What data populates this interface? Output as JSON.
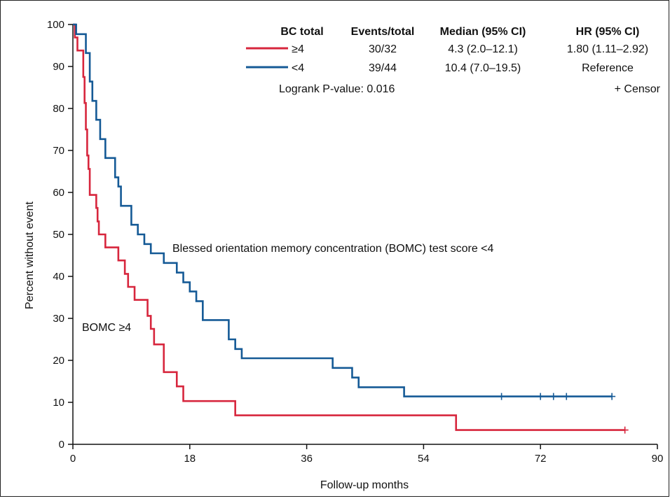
{
  "chart_data": {
    "type": "line",
    "xlabel": "Follow-up months",
    "ylabel": "Percent without event",
    "xlim": [
      0,
      90
    ],
    "ylim": [
      0,
      100
    ],
    "xticks": [
      0,
      18,
      36,
      54,
      72,
      90
    ],
    "yticks": [
      0,
      10,
      20,
      30,
      40,
      50,
      60,
      70,
      80,
      90,
      100
    ],
    "grid": false,
    "series": [
      {
        "name": "≥4",
        "color": "#d7263d",
        "x": [
          0,
          0.3,
          0.7,
          1.0,
          1.6,
          1.8,
          2.0,
          2.2,
          2.4,
          2.6,
          3.6,
          3.8,
          4.0,
          5.0,
          7.0,
          8.0,
          8.5,
          9.5,
          11.5,
          12.0,
          12.5,
          14.0,
          15.0,
          16.0,
          17.0,
          25.0,
          59.0,
          85.0
        ],
        "y": [
          100,
          96.9,
          93.8,
          93.8,
          87.5,
          81.3,
          75.0,
          68.8,
          65.6,
          59.4,
          56.3,
          53.1,
          50.0,
          46.9,
          43.8,
          40.6,
          37.5,
          34.4,
          30.6,
          27.5,
          23.8,
          17.2,
          17.2,
          13.8,
          10.3,
          6.9,
          3.4,
          3.4
        ],
        "censored": [
          85.0
        ]
      },
      {
        "name": "<4",
        "color": "#155a96",
        "x": [
          0,
          0.5,
          2.0,
          2.6,
          3.0,
          3.6,
          4.2,
          5.0,
          6.5,
          7.0,
          7.4,
          8.0,
          9.0,
          10.0,
          11.0,
          12.0,
          14.0,
          16.0,
          17.0,
          18.0,
          19.0,
          20.0,
          24.0,
          25.0,
          26.0,
          27.0,
          40.0,
          43.0,
          44.0,
          51.0,
          66.0,
          72.0,
          74.0,
          76.0,
          83.0
        ],
        "y": [
          100,
          97.7,
          93.2,
          86.4,
          81.8,
          77.3,
          72.7,
          68.2,
          63.6,
          61.4,
          56.8,
          56.8,
          52.3,
          50.0,
          47.7,
          45.5,
          43.2,
          40.9,
          38.6,
          36.4,
          34.1,
          29.6,
          25.0,
          22.7,
          20.5,
          20.5,
          18.2,
          15.9,
          13.6,
          11.4,
          11.4,
          11.4,
          11.4,
          11.4,
          11.4
        ],
        "censored": [
          66.0,
          72.0,
          74.0,
          76.0,
          83.0
        ]
      }
    ],
    "legend": {
      "placement": "top-right",
      "headers": [
        "BC total",
        "Events/total",
        "Median (95% CI)",
        "HR (95% CI)"
      ],
      "rows": [
        {
          "label": "≥4",
          "events": "30/32",
          "median": "4.3 (2.0–12.1)",
          "hr": "1.80 (1.11–2.92)"
        },
        {
          "label": "<4",
          "events": "39/44",
          "median": "10.4 (7.0–19.5)",
          "hr": "Reference"
        }
      ],
      "logrank": "Logrank P-value: 0.016",
      "censor": "+ Censor"
    },
    "annotations": {
      "blue_series": "Blessed orientation memory concentration (BOMC) test score <4",
      "red_series": "BOMC ≥4"
    }
  }
}
